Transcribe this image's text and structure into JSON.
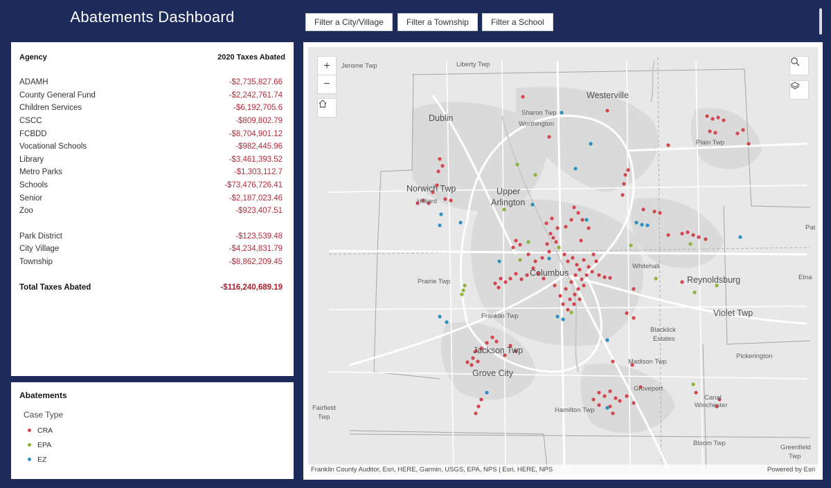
{
  "header": {
    "title": "Abatements Dashboard",
    "filters": [
      "Filter a City/Village",
      "Filter a Township",
      "Filter a School"
    ]
  },
  "table": {
    "col_agency": "Agency",
    "col_taxes": "2020 Taxes Abated",
    "rows": [
      {
        "agency": "ADAMH",
        "value": "-$2,735,827.66"
      },
      {
        "agency": "County General Fund",
        "value": "-$2,242,761.74"
      },
      {
        "agency": "Children Services",
        "value": "-$6,192,705.6"
      },
      {
        "agency": "CSCC",
        "value": "-$809,802.79"
      },
      {
        "agency": "FCBDD",
        "value": "-$8,704,901.12"
      },
      {
        "agency": "Vocational Schools",
        "value": "-$982,445.96"
      },
      {
        "agency": "Library",
        "value": "-$3,461,393.52"
      },
      {
        "agency": "Metro Parks",
        "value": "-$1,303,112.7"
      },
      {
        "agency": "Schools",
        "value": "-$73,476,726.41"
      },
      {
        "agency": "Senior",
        "value": "-$2,187,023.46"
      },
      {
        "agency": "Zoo",
        "value": "-$923,407.51"
      },
      {
        "agency": "Park District",
        "value": "-$123,539.48"
      },
      {
        "agency": "City Village",
        "value": "-$4,234,831.79"
      },
      {
        "agency": "Township",
        "value": "-$8,862,209.45"
      }
    ],
    "total_label": "Total Taxes Abated",
    "total_value": "-$116,240,689.19"
  },
  "legend": {
    "title": "Abatements",
    "subtitle": "Case Type",
    "items": [
      {
        "label": "CRA",
        "color": "#d2464f"
      },
      {
        "label": "EPA",
        "color": "#8db33a"
      },
      {
        "label": "EZ",
        "color": "#2b8fc2"
      }
    ]
  },
  "map": {
    "places": [
      "Jerome Twp",
      "Liberty Twp",
      "Westerville",
      "Sharon Twp",
      "Worthington",
      "Dublin",
      "Plain Twp",
      "Norwich Twp",
      "Hilliard",
      "Upper",
      "Arlington",
      "Columbus",
      "Whitehall",
      "Reynoldsburg",
      "Prairie Twp",
      "Franklin Twp",
      "Violet Twp",
      "Blacklick",
      "Estates",
      "Jackson Twp",
      "Grove City",
      "Madison Twp",
      "Pickerington",
      "Groveport",
      "Canal",
      "Winchester",
      "Fairfield",
      "Twp",
      "Hamilton Twp",
      "Bloom Twp",
      "Greenfield",
      "Twp",
      "Etna",
      "Pat"
    ],
    "attribution": "Franklin County Auditor, Esri, HERE, Garmin, USGS, EPA, NPS | Esri, HERE, NPS",
    "powered_by": "Powered by Esri",
    "controls": {
      "zoom_in": "+",
      "zoom_out": "−"
    },
    "colors": {
      "background": "#e8e8e8",
      "urban": "#d9d9d9",
      "roads": "#ffffff",
      "boundaries": "#9a9a9a"
    }
  }
}
